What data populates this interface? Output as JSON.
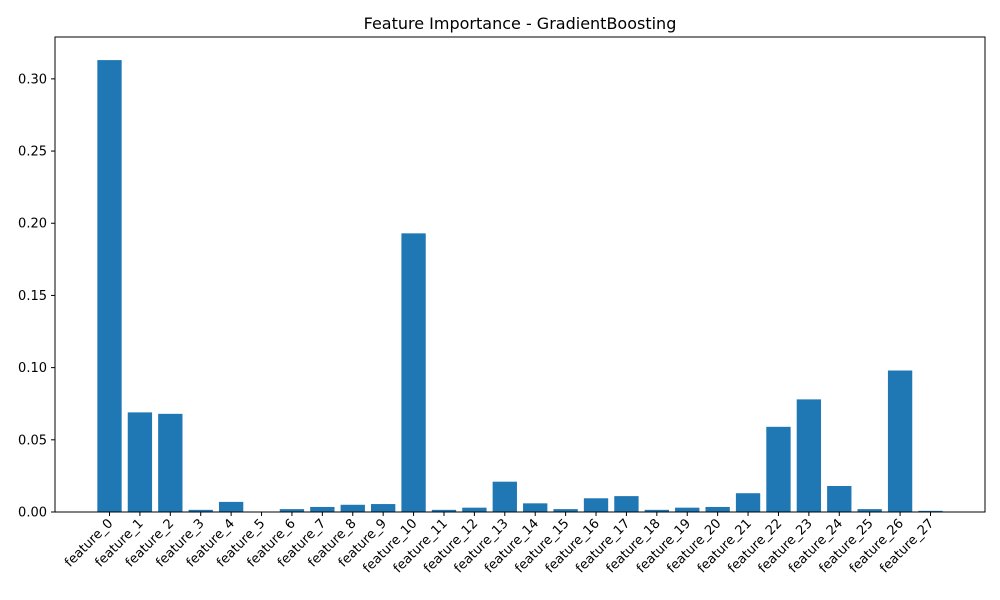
{
  "chart_data": {
    "type": "bar",
    "title": "Feature Importance - GradientBoosting",
    "xlabel": "",
    "ylabel": "",
    "categories": [
      "feature_0",
      "feature_1",
      "feature_2",
      "feature_3",
      "feature_4",
      "feature_5",
      "feature_6",
      "feature_7",
      "feature_8",
      "feature_9",
      "feature_10",
      "feature_11",
      "feature_12",
      "feature_13",
      "feature_14",
      "feature_15",
      "feature_16",
      "feature_17",
      "feature_18",
      "feature_19",
      "feature_20",
      "feature_21",
      "feature_22",
      "feature_23",
      "feature_24",
      "feature_25",
      "feature_26",
      "feature_27"
    ],
    "values": [
      0.313,
      0.069,
      0.068,
      0.0015,
      0.007,
      0.0,
      0.002,
      0.0035,
      0.005,
      0.0055,
      0.193,
      0.0015,
      0.003,
      0.021,
      0.006,
      0.002,
      0.0095,
      0.011,
      0.0015,
      0.003,
      0.0035,
      0.013,
      0.059,
      0.078,
      0.018,
      0.002,
      0.098,
      0.0008
    ],
    "ylim": [
      0,
      0.329
    ],
    "yticks": [
      "0.00",
      "0.05",
      "0.10",
      "0.15",
      "0.20",
      "0.25",
      "0.30"
    ],
    "grid": false,
    "bar_color": "#1f77b4"
  }
}
